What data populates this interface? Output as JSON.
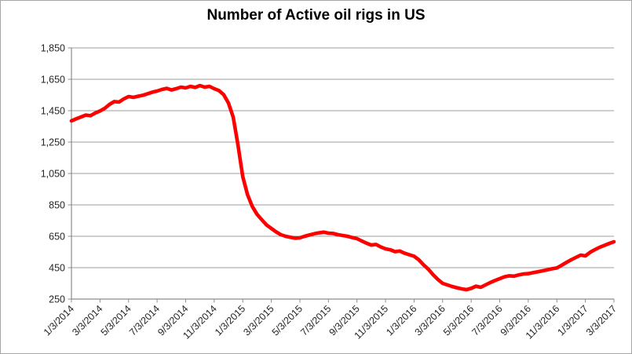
{
  "chart_data": {
    "type": "line",
    "title": "Number of Active oil rigs in US",
    "xlabel": "",
    "ylabel": "",
    "ylim": [
      250,
      1850
    ],
    "y_ticks": [
      250,
      450,
      650,
      850,
      1050,
      1250,
      1450,
      1650,
      1850
    ],
    "x_tick_labels": [
      "1/3/2014",
      "3/3/2014",
      "5/3/2014",
      "7/3/2014",
      "9/3/2014",
      "11/3/2014",
      "1/3/2015",
      "3/3/2015",
      "5/3/2015",
      "7/3/2015",
      "9/3/2015",
      "11/3/2015",
      "1/3/2016",
      "3/3/2016",
      "5/3/2016",
      "7/3/2016",
      "9/3/2016",
      "11/3/2016",
      "1/3/2017",
      "3/3/2017"
    ],
    "grid": "horizontal-only",
    "legend": "none",
    "series": [
      {
        "name": "Active oil rigs",
        "color": "#fe0000",
        "values": [
          1385,
          1398,
          1410,
          1422,
          1418,
          1435,
          1448,
          1465,
          1490,
          1508,
          1505,
          1525,
          1540,
          1535,
          1542,
          1548,
          1558,
          1568,
          1575,
          1585,
          1592,
          1582,
          1590,
          1600,
          1595,
          1605,
          1598,
          1610,
          1600,
          1605,
          1590,
          1578,
          1552,
          1498,
          1408,
          1230,
          1030,
          915,
          840,
          790,
          755,
          722,
          700,
          678,
          660,
          650,
          644,
          638,
          640,
          650,
          658,
          666,
          672,
          676,
          670,
          668,
          660,
          655,
          650,
          642,
          635,
          620,
          606,
          594,
          598,
          582,
          570,
          564,
          552,
          556,
          542,
          532,
          523,
          500,
          468,
          440,
          405,
          375,
          350,
          340,
          330,
          322,
          315,
          310,
          318,
          332,
          325,
          340,
          355,
          368,
          380,
          392,
          398,
          396,
          404,
          410,
          412,
          418,
          424,
          430,
          436,
          443,
          448,
          465,
          483,
          500,
          515,
          530,
          525,
          548,
          565,
          580,
          592,
          604,
          615
        ]
      }
    ]
  },
  "colors": {
    "line": "#fe0000",
    "gridline": "#9e9e9e",
    "axis": "#8c8c8c",
    "tick_text": "#262626",
    "title_text": "#000000",
    "frame_border": "#a6a6a6",
    "background": "#ffffff"
  }
}
